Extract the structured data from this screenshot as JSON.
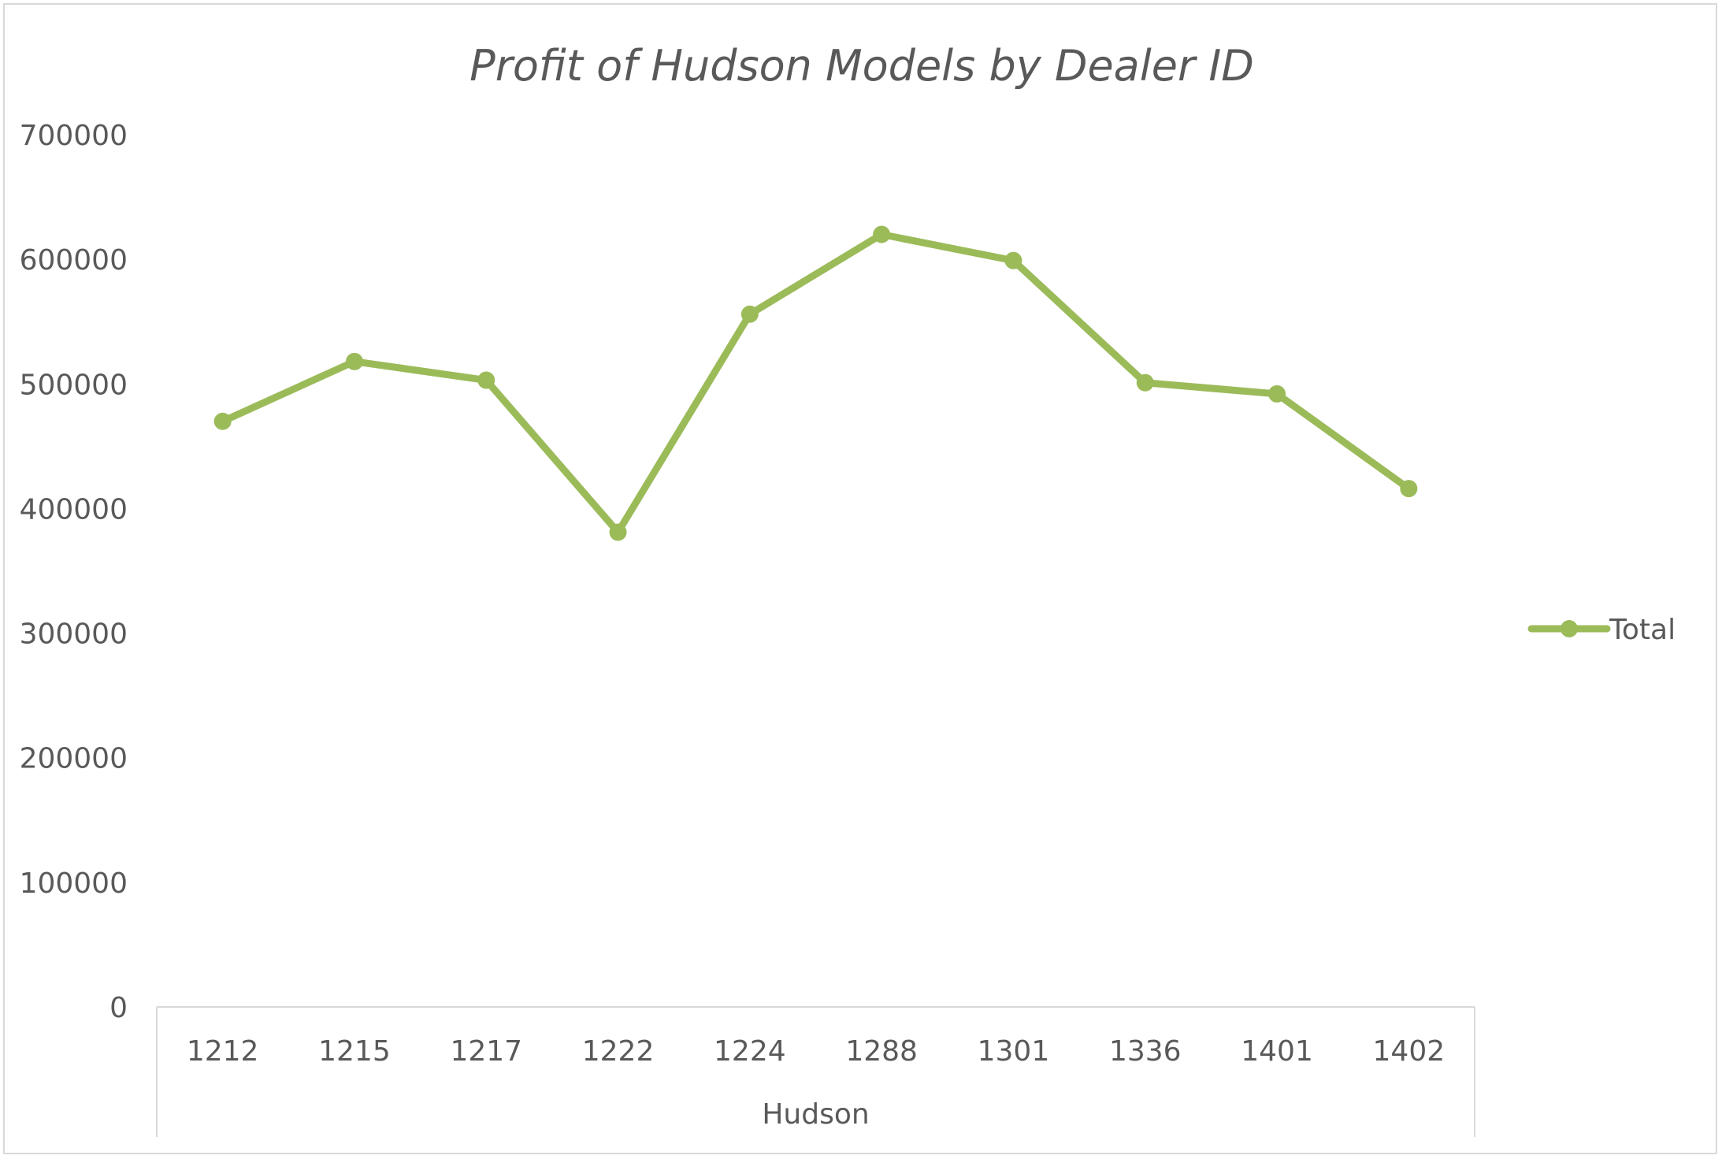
{
  "chart_data": {
    "type": "line",
    "title": "Profit of Hudson Models by Dealer ID",
    "categories": [
      "1212",
      "1215",
      "1217",
      "1222",
      "1224",
      "1288",
      "1301",
      "1336",
      "1401",
      "1402"
    ],
    "group_label": "Hudson",
    "series": [
      {
        "name": "Total",
        "color": "#9bbb59",
        "values": [
          470000,
          518000,
          503000,
          381000,
          556000,
          620000,
          599000,
          501000,
          492000,
          416000
        ]
      }
    ],
    "ylim": [
      0,
      700000
    ],
    "yticks": [
      "0",
      "100000",
      "200000",
      "300000",
      "400000",
      "500000",
      "600000",
      "700000"
    ],
    "grid": false,
    "legend": "right"
  }
}
